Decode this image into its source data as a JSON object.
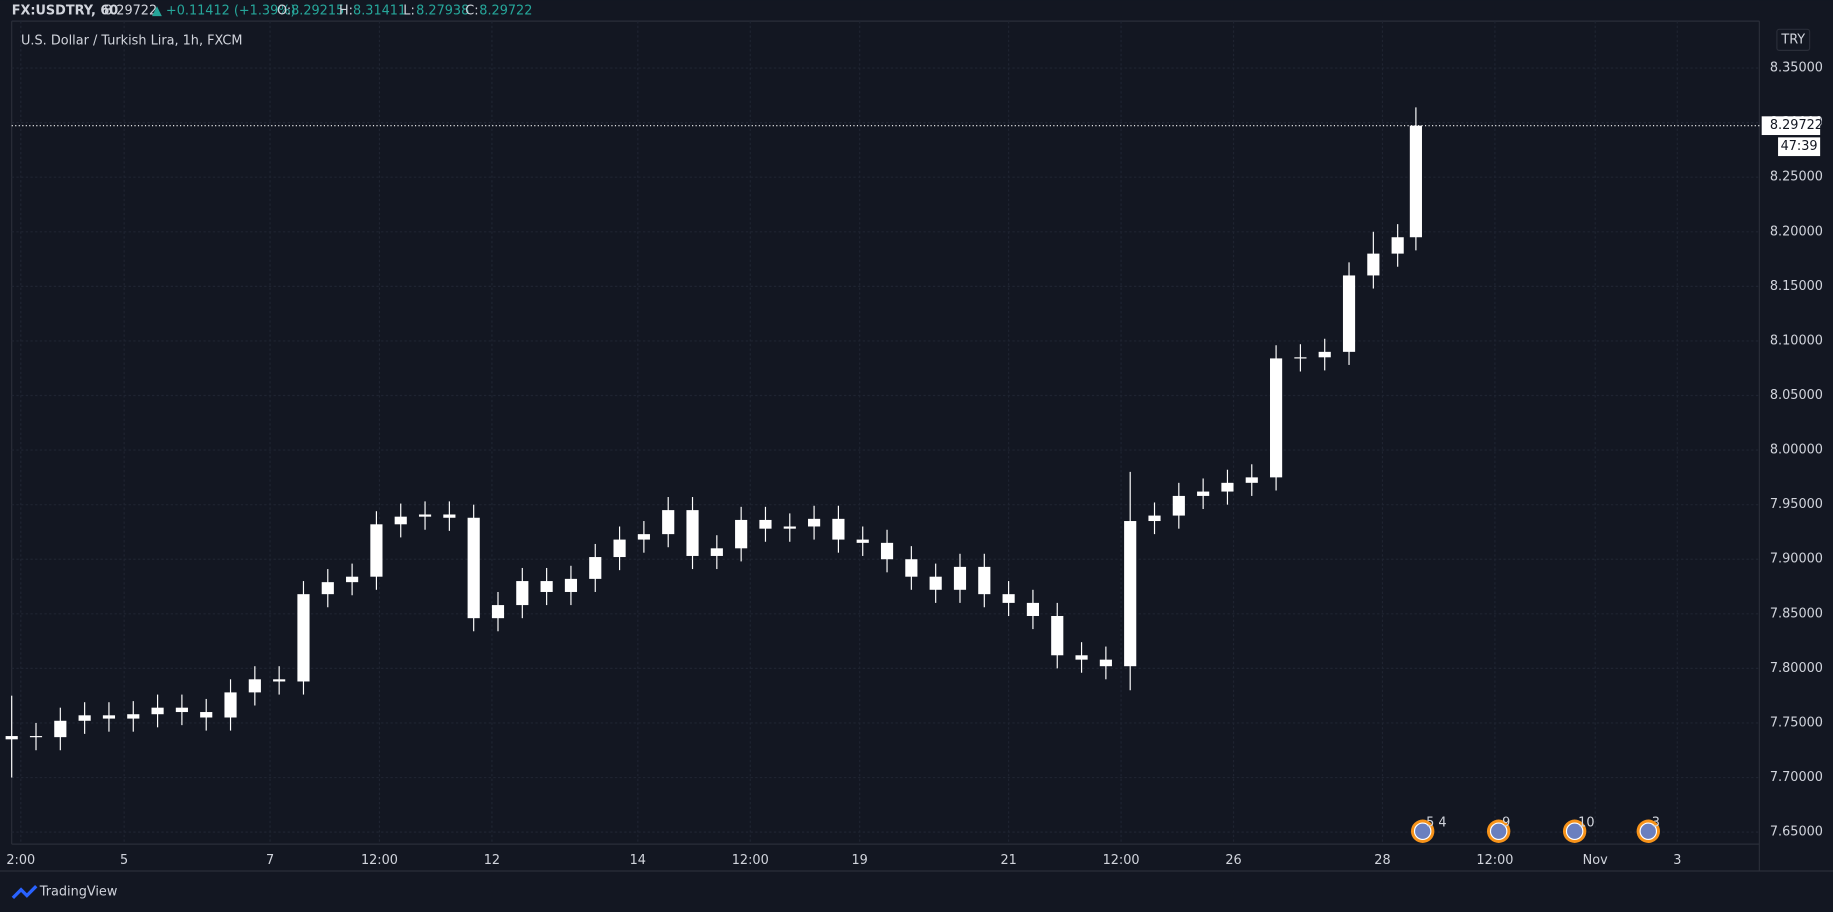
{
  "header": {
    "symbol": "FX:USDTRY, 60",
    "last": "8.29722",
    "change": "▲ +0.11412 (+1.39%)",
    "o_label": "O:",
    "o": "8.29215",
    "h_label": "H:",
    "h": "8.31411",
    "l_label": "L:",
    "l": "8.27938",
    "c_label": "C:",
    "c": "8.29722"
  },
  "chart_data": {
    "type": "candlestick",
    "title": "U.S. Dollar / Turkish Lira, 1h, FXCM",
    "currency": "TRY",
    "color": "#ffffff",
    "x": [
      0,
      8,
      16,
      24,
      32,
      40,
      48,
      56,
      64,
      72,
      80,
      88,
      96,
      104,
      112,
      120,
      128,
      136,
      144,
      152,
      160,
      168,
      176,
      184,
      192,
      200,
      208,
      216,
      224,
      232,
      240,
      248,
      256,
      264,
      272,
      280,
      288,
      296,
      304,
      312,
      320,
      328,
      336,
      344,
      352,
      360,
      368,
      376,
      384,
      392,
      400,
      408,
      416,
      424,
      432,
      440,
      448,
      456,
      462
    ],
    "open": [
      7.735,
      7.738,
      7.737,
      7.752,
      7.757,
      7.754,
      7.758,
      7.764,
      7.76,
      7.755,
      7.778,
      7.79,
      7.788,
      7.868,
      7.879,
      7.884,
      7.932,
      7.939,
      7.941,
      7.938,
      7.846,
      7.858,
      7.88,
      7.87,
      7.882,
      7.902,
      7.918,
      7.923,
      7.945,
      7.903,
      7.91,
      7.936,
      7.928,
      7.93,
      7.937,
      7.918,
      7.915,
      7.9,
      7.884,
      7.872,
      7.893,
      7.868,
      7.86,
      7.848,
      7.812,
      7.808,
      7.802,
      7.935,
      7.94,
      7.958,
      7.962,
      7.97,
      7.975,
      8.084,
      8.085,
      8.09,
      8.16,
      8.18,
      8.195
    ],
    "high": [
      7.775,
      7.75,
      7.764,
      7.769,
      7.769,
      7.77,
      7.776,
      7.776,
      7.772,
      7.79,
      7.802,
      7.802,
      7.88,
      7.891,
      7.896,
      7.944,
      7.951,
      7.953,
      7.953,
      7.95,
      7.87,
      7.892,
      7.892,
      7.894,
      7.914,
      7.93,
      7.935,
      7.957,
      7.957,
      7.922,
      7.948,
      7.948,
      7.942,
      7.949,
      7.949,
      7.93,
      7.927,
      7.912,
      7.896,
      7.905,
      7.905,
      7.88,
      7.872,
      7.86,
      7.824,
      7.82,
      7.98,
      7.952,
      7.97,
      7.974,
      7.982,
      7.987,
      8.096,
      8.097,
      8.102,
      8.172,
      8.2,
      8.207,
      8.314
    ],
    "low": [
      7.7,
      7.725,
      7.725,
      7.74,
      7.742,
      7.742,
      7.746,
      7.748,
      7.743,
      7.743,
      7.766,
      7.776,
      7.776,
      7.856,
      7.867,
      7.872,
      7.92,
      7.927,
      7.926,
      7.834,
      7.834,
      7.846,
      7.858,
      7.858,
      7.87,
      7.89,
      7.906,
      7.911,
      7.891,
      7.891,
      7.898,
      7.916,
      7.916,
      7.918,
      7.906,
      7.903,
      7.888,
      7.872,
      7.86,
      7.86,
      7.856,
      7.848,
      7.836,
      7.8,
      7.796,
      7.79,
      7.78,
      7.923,
      7.928,
      7.946,
      7.95,
      7.958,
      7.963,
      8.072,
      8.073,
      8.078,
      8.148,
      8.168,
      8.183
    ],
    "close": [
      7.738,
      7.737,
      7.752,
      7.757,
      7.754,
      7.758,
      7.764,
      7.76,
      7.755,
      7.778,
      7.79,
      7.788,
      7.868,
      7.879,
      7.884,
      7.932,
      7.939,
      7.941,
      7.938,
      7.846,
      7.858,
      7.88,
      7.87,
      7.882,
      7.902,
      7.918,
      7.923,
      7.945,
      7.903,
      7.91,
      7.936,
      7.928,
      7.93,
      7.937,
      7.918,
      7.915,
      7.9,
      7.884,
      7.872,
      7.893,
      7.868,
      7.86,
      7.848,
      7.812,
      7.808,
      7.802,
      7.935,
      7.94,
      7.958,
      7.962,
      7.97,
      7.975,
      8.084,
      8.085,
      8.09,
      8.16,
      8.18,
      8.195,
      8.29722
    ],
    "xlim": [
      0,
      575
    ],
    "xticks": [
      {
        "value": 3,
        "label": "2:00"
      },
      {
        "value": 37,
        "label": "5"
      },
      {
        "value": 85,
        "label": "7"
      },
      {
        "value": 121,
        "label": "12:00"
      },
      {
        "value": 158,
        "label": "12"
      },
      {
        "value": 206,
        "label": "14"
      },
      {
        "value": 243,
        "label": "12:00"
      },
      {
        "value": 279,
        "label": "19"
      },
      {
        "value": 328,
        "label": "21"
      },
      {
        "value": 365,
        "label": "12:00"
      },
      {
        "value": 402,
        "label": "26"
      },
      {
        "value": 451,
        "label": "28"
      },
      {
        "value": 488,
        "label": "12:00"
      },
      {
        "value": 521,
        "label": "Nov"
      },
      {
        "value": 548,
        "label": "3"
      }
    ],
    "ylim": [
      7.639,
      8.393
    ],
    "yticks": [
      {
        "value": 7.65,
        "label": "7.65000"
      },
      {
        "value": 7.7,
        "label": "7.70000"
      },
      {
        "value": 7.75,
        "label": "7.75000"
      },
      {
        "value": 7.8,
        "label": "7.80000"
      },
      {
        "value": 7.85,
        "label": "7.85000"
      },
      {
        "value": 7.9,
        "label": "7.90000"
      },
      {
        "value": 7.95,
        "label": "7.95000"
      },
      {
        "value": 8.0,
        "label": "8.00000"
      },
      {
        "value": 8.05,
        "label": "8.05000"
      },
      {
        "value": 8.1,
        "label": "8.10000"
      },
      {
        "value": 8.15,
        "label": "8.15000"
      },
      {
        "value": 8.2,
        "label": "8.20000"
      },
      {
        "value": 8.25,
        "label": "8.25000"
      },
      {
        "value": 8.3,
        "label": "8.30000"
      },
      {
        "value": 8.35,
        "label": "8.35000"
      }
    ],
    "grid": true,
    "price_line": {
      "value": 8.29722,
      "countdown": "47:39"
    },
    "events": [
      "5  4",
      "9",
      "10",
      "3"
    ]
  },
  "footer": {
    "brand": "TradingView"
  }
}
